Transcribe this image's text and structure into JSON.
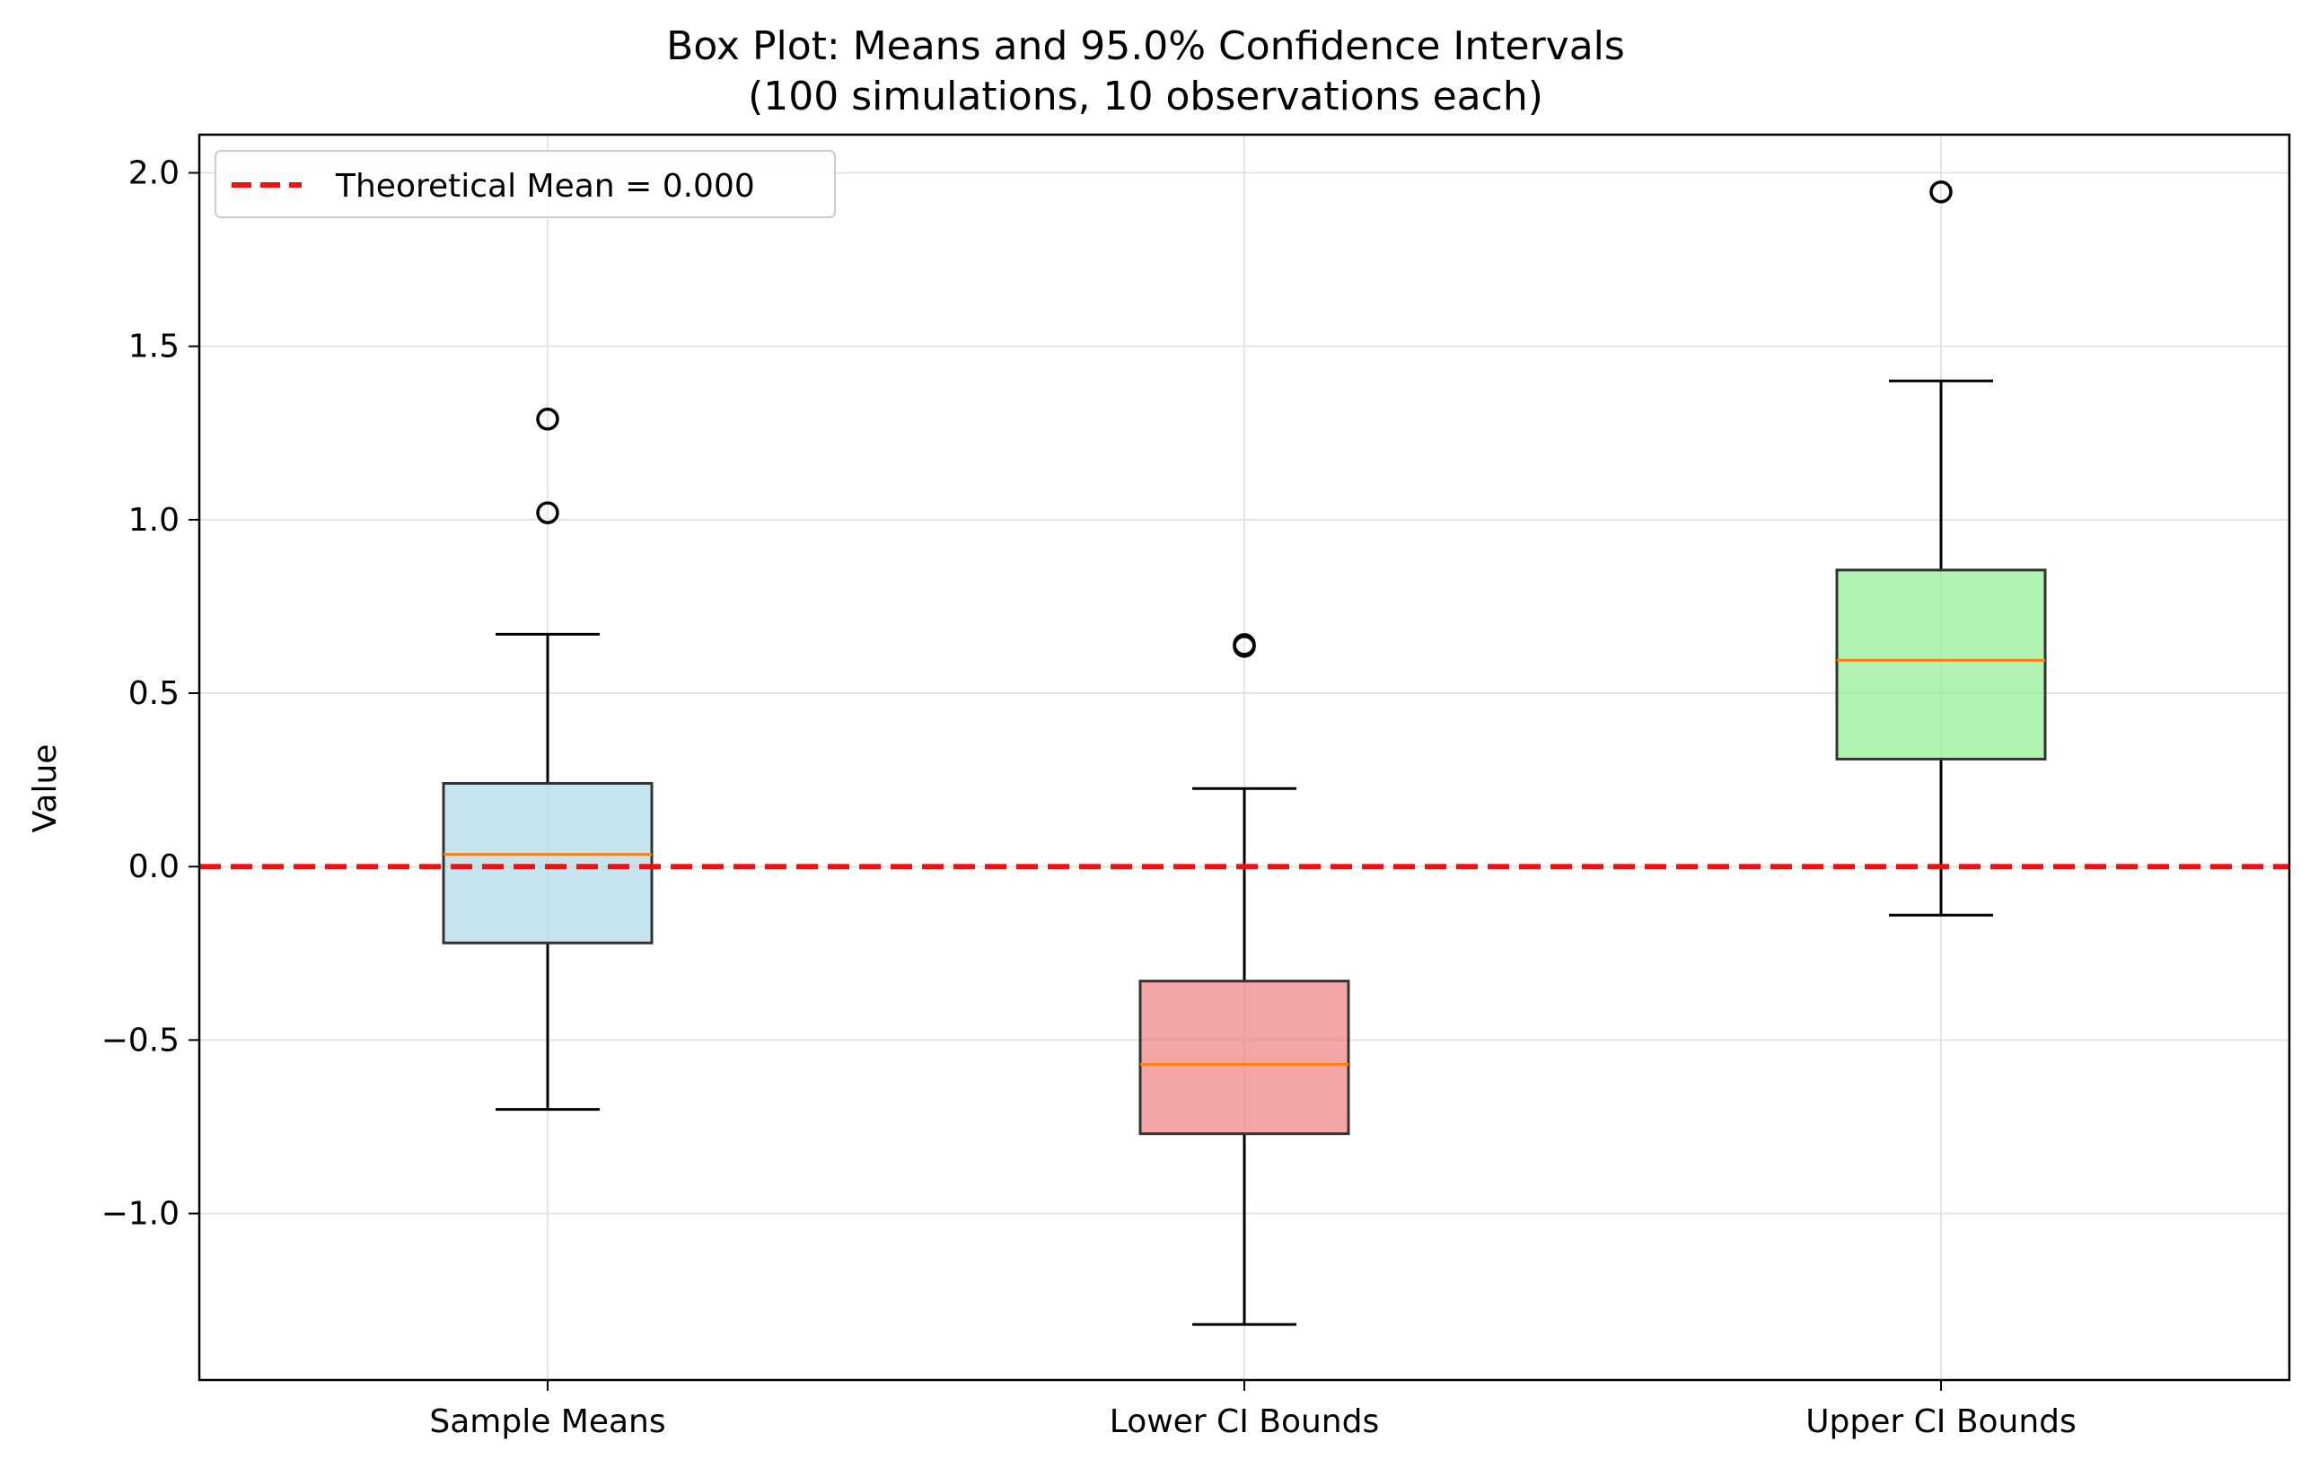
{
  "chart_data": {
    "type": "box",
    "title": "Box Plot: Means and 95.0% Confidence Intervals",
    "subtitle": "(100 simulations, 10 observations each)",
    "xlabel": "",
    "ylabel": "Value",
    "ylim": [
      -1.48,
      2.11
    ],
    "yticks": [
      -1.0,
      -0.5,
      0.0,
      0.5,
      1.0,
      1.5,
      2.0
    ],
    "ytick_labels": [
      "−1.0",
      "−0.5",
      "0.0",
      "0.5",
      "1.0",
      "1.5",
      "2.0"
    ],
    "grid": true,
    "legend_position": "top-left",
    "reference_line": {
      "label": "Theoretical Mean = 0.000",
      "value": 0.0,
      "color": "#ee1111",
      "style": "dashed"
    },
    "categories": [
      "Sample Means",
      "Lower CI Bounds",
      "Upper CI Bounds"
    ],
    "boxes": [
      {
        "name": "Sample Means",
        "whisker_low": -0.7,
        "q1": -0.22,
        "median": 0.035,
        "q3": 0.24,
        "whisker_high": 0.67,
        "outliers": [
          1.29,
          1.02
        ],
        "color": "#add8e6"
      },
      {
        "name": "Lower CI Bounds",
        "whisker_low": -1.32,
        "q1": -0.77,
        "median": -0.57,
        "q3": -0.33,
        "whisker_high": 0.225,
        "outliers": [
          0.635,
          0.64
        ],
        "color": "#f08080"
      },
      {
        "name": "Upper CI Bounds",
        "whisker_low": -0.14,
        "q1": 0.31,
        "median": 0.595,
        "q3": 0.855,
        "whisker_high": 1.4,
        "outliers": [
          1.945
        ],
        "color": "#90ee90"
      }
    ],
    "median_color": "#ff7f0e"
  }
}
